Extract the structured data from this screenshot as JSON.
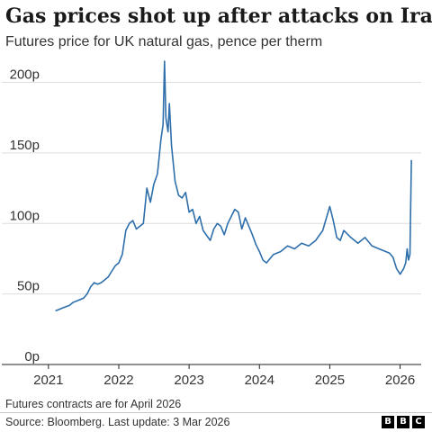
{
  "chart_data": {
    "type": "line",
    "title": "Gas prices shot up after attacks on Iran",
    "subtitle": "Futures price for UK natural gas, pence per therm",
    "xlabel": "",
    "ylabel": "",
    "y_ticks": [
      "0p",
      "50p",
      "100p",
      "150p",
      "200p"
    ],
    "y_tick_values": [
      0,
      50,
      100,
      150,
      200
    ],
    "x_ticks": [
      "2021",
      "2022",
      "2023",
      "2024",
      "2025",
      "2026"
    ],
    "x_tick_values": [
      2021,
      2022,
      2023,
      2024,
      2025,
      2026
    ],
    "xlim": [
      2020.9,
      2026.3
    ],
    "ylim": [
      0,
      215
    ],
    "grid": true,
    "legend": "none",
    "line_color": "#2E6FAB",
    "x": [
      2021.1,
      2021.15,
      2021.2,
      2021.25,
      2021.3,
      2021.35,
      2021.4,
      2021.45,
      2021.5,
      2021.55,
      2021.6,
      2021.65,
      2021.7,
      2021.75,
      2021.8,
      2021.85,
      2021.9,
      2021.95,
      2022.0,
      2022.05,
      2022.1,
      2022.15,
      2022.2,
      2022.25,
      2022.3,
      2022.35,
      2022.4,
      2022.45,
      2022.5,
      2022.55,
      2022.6,
      2022.63,
      2022.65,
      2022.67,
      2022.7,
      2022.72,
      2022.75,
      2022.8,
      2022.85,
      2022.9,
      2022.95,
      2023.0,
      2023.05,
      2023.1,
      2023.15,
      2023.2,
      2023.3,
      2023.35,
      2023.4,
      2023.45,
      2023.5,
      2023.55,
      2023.6,
      2023.65,
      2023.7,
      2023.75,
      2023.8,
      2023.85,
      2023.9,
      2023.95,
      2024.0,
      2024.05,
      2024.1,
      2024.15,
      2024.2,
      2024.3,
      2024.4,
      2024.5,
      2024.6,
      2024.7,
      2024.8,
      2024.9,
      2025.0,
      2025.05,
      2025.1,
      2025.15,
      2025.2,
      2025.3,
      2025.4,
      2025.5,
      2025.6,
      2025.7,
      2025.8,
      2025.85,
      2025.9,
      2025.95,
      2026.0,
      2026.05,
      2026.08,
      2026.1,
      2026.12,
      2026.14,
      2026.16
    ],
    "values": [
      38,
      39,
      40,
      41,
      42,
      44,
      45,
      46,
      47,
      50,
      55,
      58,
      57,
      58,
      60,
      62,
      66,
      70,
      72,
      78,
      95,
      100,
      102,
      96,
      98,
      100,
      125,
      115,
      128,
      135,
      160,
      170,
      215,
      175,
      165,
      185,
      155,
      130,
      120,
      118,
      122,
      108,
      110,
      100,
      105,
      95,
      88,
      96,
      100,
      98,
      92,
      100,
      105,
      110,
      108,
      96,
      104,
      98,
      92,
      85,
      80,
      74,
      72,
      75,
      78,
      80,
      84,
      82,
      86,
      84,
      88,
      95,
      112,
      102,
      90,
      88,
      95,
      90,
      86,
      90,
      84,
      82,
      80,
      79,
      76,
      68,
      64,
      68,
      72,
      82,
      74,
      78,
      145
    ]
  }
}
